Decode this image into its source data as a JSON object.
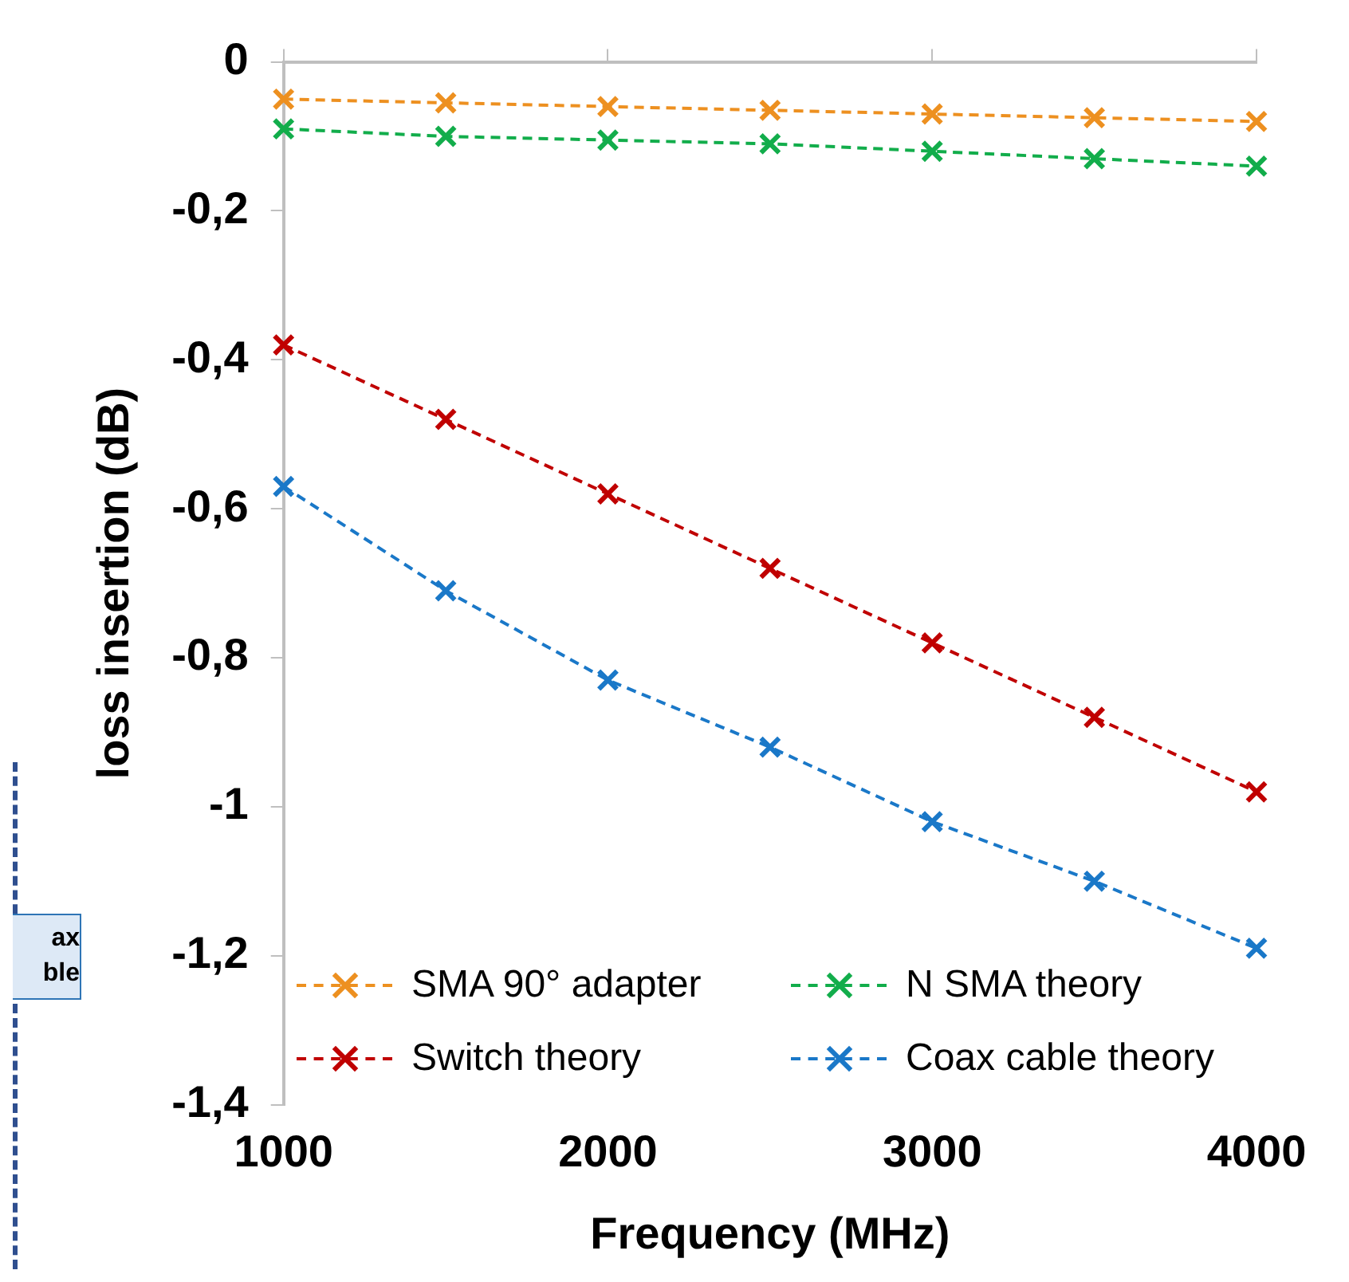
{
  "chart_data": {
    "type": "line",
    "xlabel": "Frequency (MHz)",
    "ylabel": "loss insertion (dB)",
    "x": [
      1000,
      1500,
      2000,
      2500,
      3000,
      3500,
      4000
    ],
    "series": [
      {
        "name": "SMA 90° adapter",
        "color": "#ed9020",
        "values": [
          -0.05,
          -0.055,
          -0.06,
          -0.065,
          -0.07,
          -0.075,
          -0.08
        ]
      },
      {
        "name": "N SMA theory",
        "color": "#12ad4b",
        "values": [
          -0.09,
          -0.1,
          -0.105,
          -0.11,
          -0.12,
          -0.13,
          -0.14
        ]
      },
      {
        "name": "Switch theory",
        "color": "#c00000",
        "values": [
          -0.38,
          -0.48,
          -0.58,
          -0.68,
          -0.78,
          -0.88,
          -0.98
        ]
      },
      {
        "name": "Coax cable theory",
        "color": "#1a78c8",
        "values": [
          -0.57,
          -0.71,
          -0.83,
          -0.92,
          -1.02,
          -1.1,
          -1.19
        ]
      }
    ],
    "xlim": [
      1000,
      4000
    ],
    "xticks": [
      1000,
      2000,
      3000,
      4000
    ],
    "ylim": [
      -1.4,
      0
    ],
    "yticks": [
      {
        "value": -1.4,
        "label": "-1,4"
      },
      {
        "value": -1.2,
        "label": "-1,2"
      },
      {
        "value": -1,
        "label": "-1"
      },
      {
        "value": -0.8,
        "label": "-0,8"
      },
      {
        "value": -0.6,
        "label": "-0,6"
      },
      {
        "value": -0.4,
        "label": "-0,4"
      },
      {
        "value": -0.2,
        "label": "-0,2"
      },
      {
        "value": 0,
        "label": "0"
      }
    ],
    "grid": false,
    "legend": "bottom",
    "marker": "cross",
    "line_style": "dashed",
    "annotations": [
      "ax\nble"
    ]
  }
}
